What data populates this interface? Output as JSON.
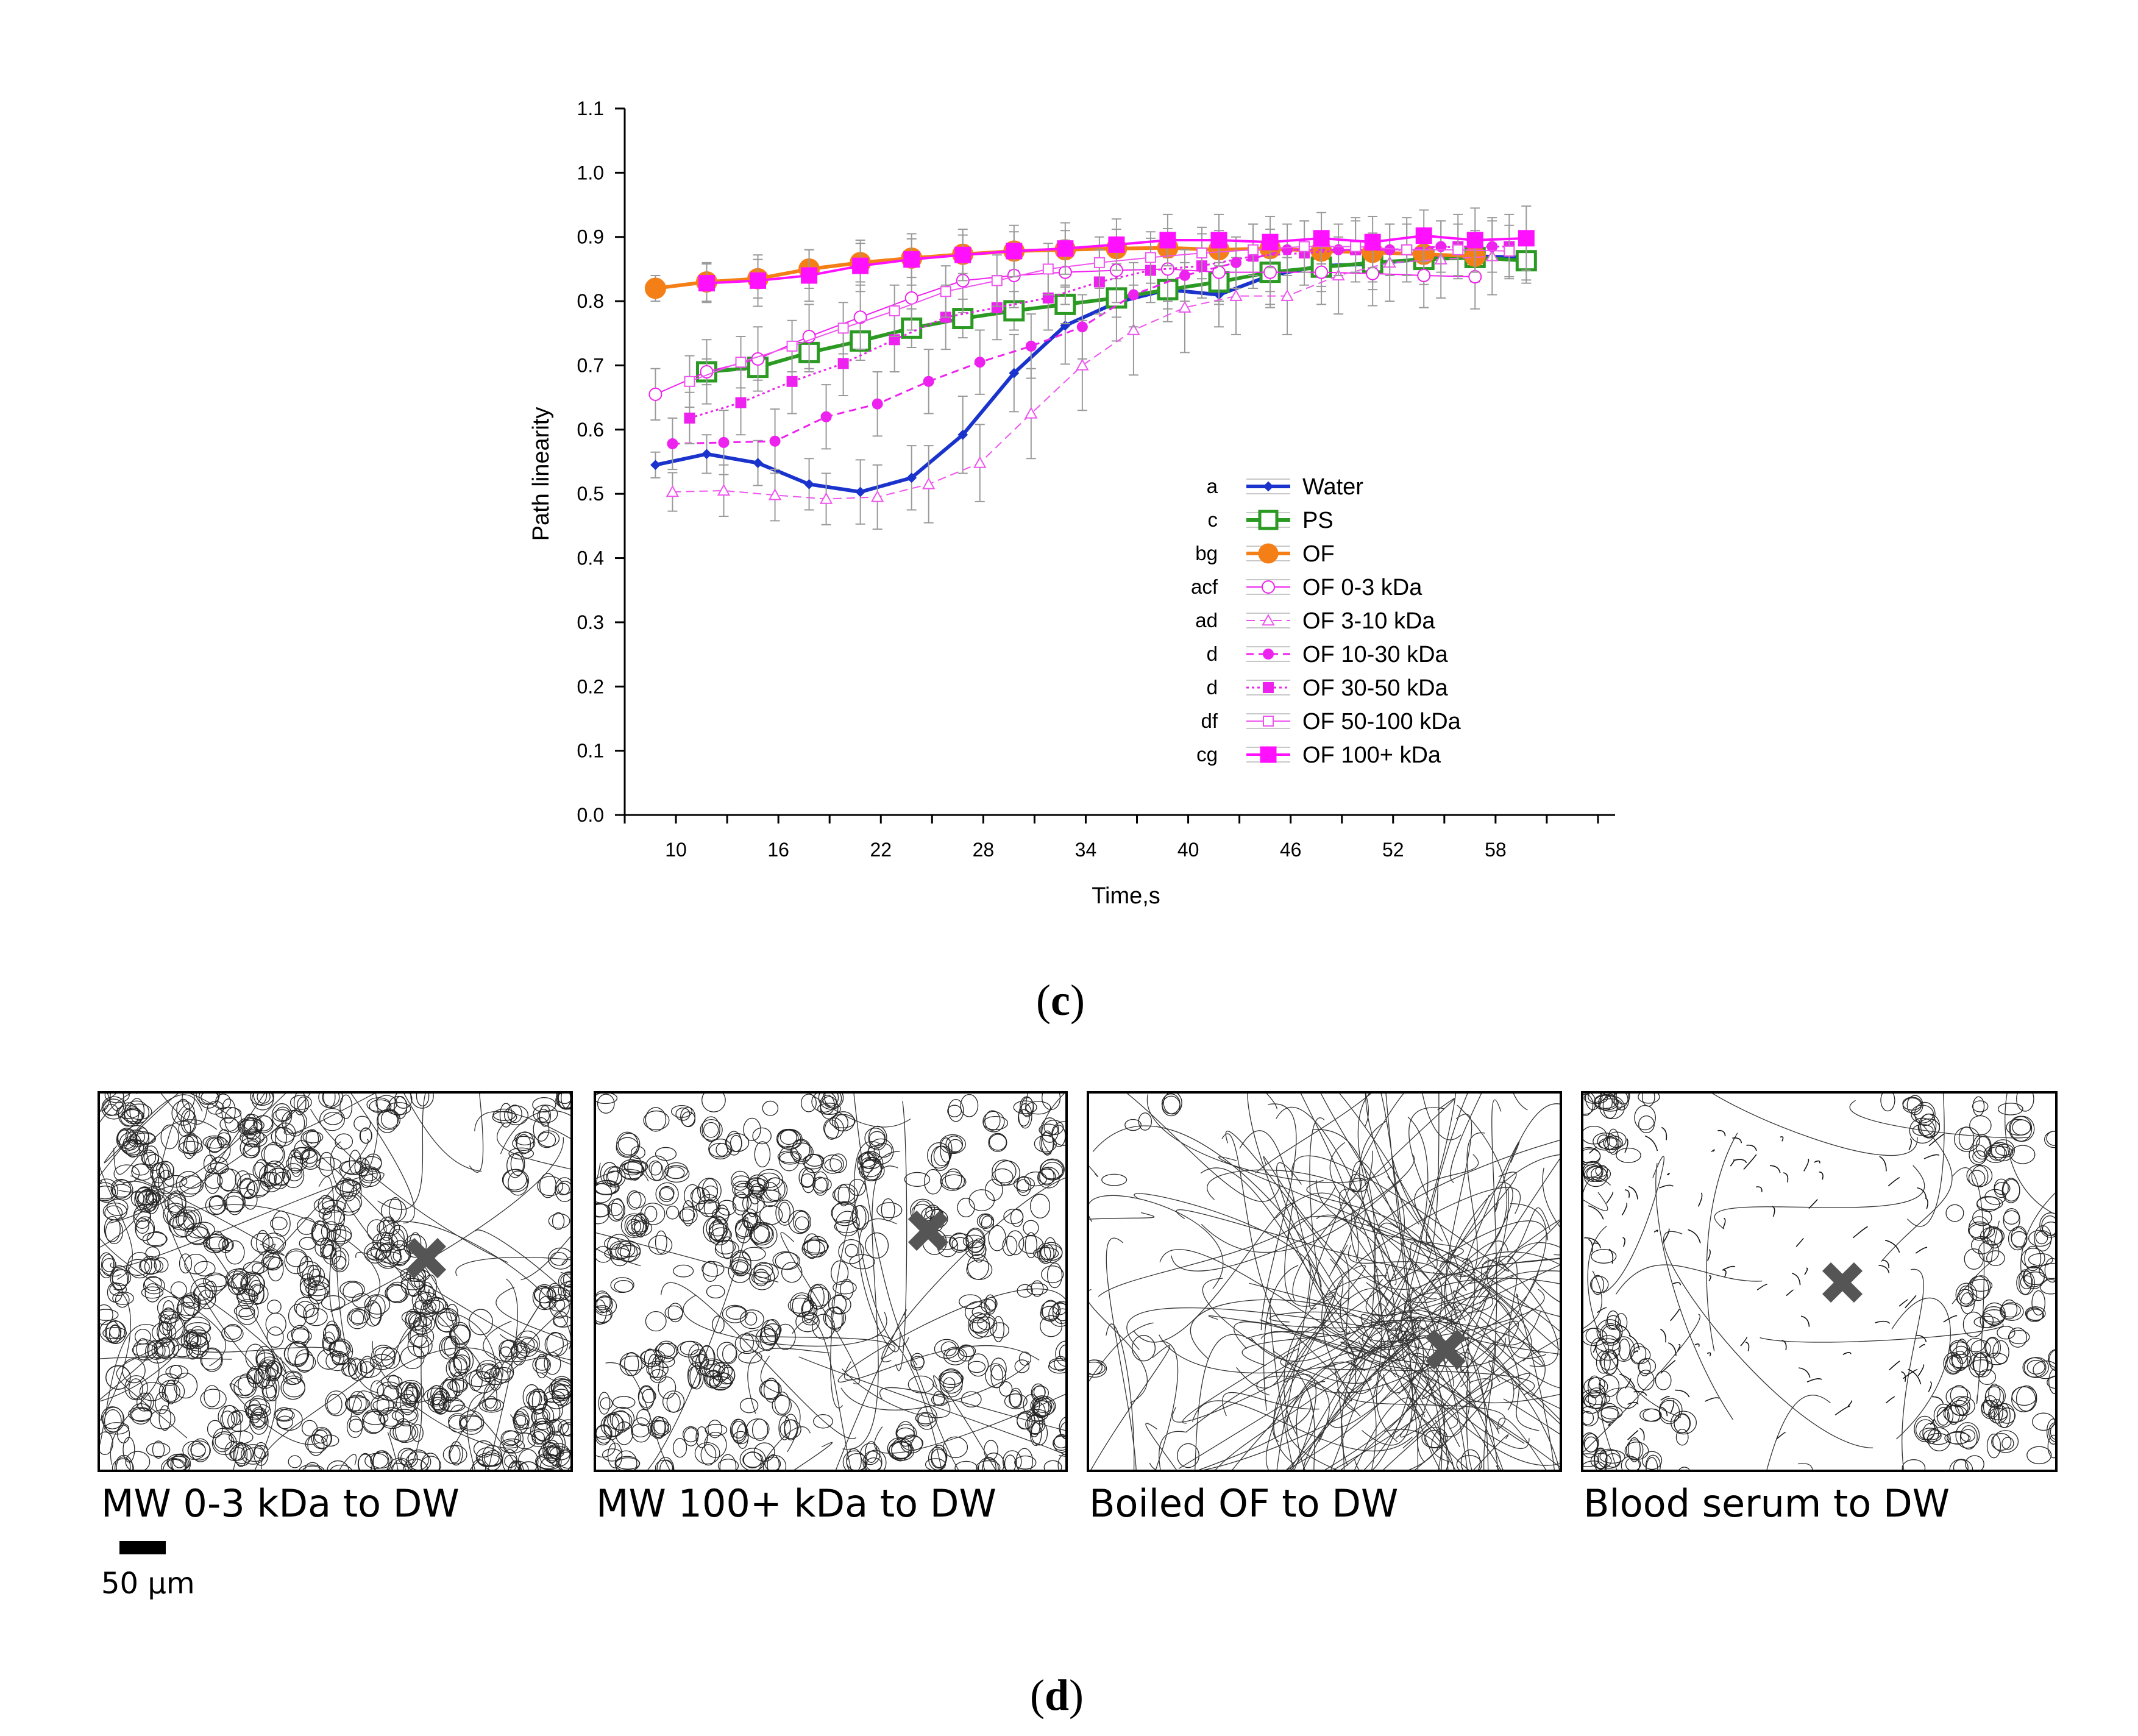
{
  "chart_data": {
    "type": "line",
    "xlabel": "Time,s",
    "ylabel": "Path linearity",
    "xlim": [
      7,
      65
    ],
    "ylim": [
      0,
      1.1
    ],
    "x_ticks": [
      "10",
      "16",
      "22",
      "28",
      "34",
      "40",
      "46",
      "52",
      "58"
    ],
    "y_ticks": [
      "0.0",
      "0.1",
      "0.2",
      "0.3",
      "0.4",
      "0.5",
      "0.6",
      "0.7",
      "0.8",
      "0.9",
      "1.0",
      "1.1"
    ],
    "legend_position": "center-right",
    "series": [
      {
        "name": "Water",
        "letter": "a",
        "color": "#1a33cc",
        "dash": "solid",
        "marker": "diamond",
        "fill": true,
        "size": 7,
        "width": 6,
        "x": [
          8.8,
          11.8,
          14.8,
          17.8,
          20.8,
          23.8,
          26.8,
          29.8,
          32.8,
          35.8,
          38.8,
          41.8,
          44.8,
          47.8,
          50.8,
          53.8,
          56.8,
          59.8
        ],
        "y": [
          0.545,
          0.562,
          0.548,
          0.515,
          0.503,
          0.525,
          0.592,
          0.688,
          0.762,
          0.798,
          0.818,
          0.81,
          0.84,
          0.855,
          0.858,
          0.866,
          0.87,
          0.868
        ],
        "err": [
          0.02,
          0.03,
          0.035,
          0.04,
          0.05,
          0.05,
          0.06,
          0.06,
          0.06,
          0.06,
          0.05,
          0.05,
          0.05,
          0.04,
          0.04,
          0.04,
          0.04,
          0.04
        ]
      },
      {
        "name": "PS",
        "letter": "c",
        "color": "#2a9a22",
        "dash": "solid",
        "marker": "square",
        "fill": false,
        "size": 15,
        "width": 6,
        "x": [
          11.8,
          14.8,
          17.8,
          20.8,
          23.8,
          26.8,
          29.8,
          32.8,
          35.8,
          38.8,
          41.8,
          44.8,
          47.8,
          50.8,
          53.8,
          56.8,
          59.8
        ],
        "y": [
          0.69,
          0.697,
          0.72,
          0.738,
          0.758,
          0.773,
          0.785,
          0.795,
          0.805,
          0.818,
          0.83,
          0.845,
          0.853,
          0.86,
          0.865,
          0.868,
          0.863
        ],
        "err": [
          0.02,
          0.02,
          0.03,
          0.03,
          0.03,
          0.03,
          0.03,
          0.03,
          0.03,
          0.03,
          0.03,
          0.03,
          0.03,
          0.03,
          0.03,
          0.03,
          0.03
        ]
      },
      {
        "name": "OF",
        "letter": "bg",
        "color": "#f57f17",
        "dash": "solid",
        "marker": "circle",
        "fill": true,
        "size": 15,
        "width": 6,
        "x": [
          8.8,
          11.8,
          14.8,
          17.8,
          20.8,
          23.8,
          26.8,
          29.8,
          32.8,
          35.8,
          38.8,
          41.8,
          44.8,
          47.8,
          50.8,
          53.8,
          56.8
        ],
        "y": [
          0.82,
          0.83,
          0.835,
          0.85,
          0.86,
          0.867,
          0.873,
          0.878,
          0.88,
          0.882,
          0.883,
          0.88,
          0.882,
          0.878,
          0.876,
          0.873,
          0.87
        ],
        "err": [
          0.02,
          0.03,
          0.03,
          0.03,
          0.03,
          0.03,
          0.03,
          0.03,
          0.03,
          0.03,
          0.03,
          0.03,
          0.03,
          0.03,
          0.03,
          0.03,
          0.03
        ]
      },
      {
        "name": "OF 0-3 kDa",
        "letter": "acf",
        "color": "#ee22ee",
        "dash": "solid",
        "marker": "circle",
        "fill": false,
        "size": 10,
        "width": 2,
        "x": [
          8.8,
          11.8,
          14.8,
          17.8,
          20.8,
          23.8,
          26.8,
          29.8,
          32.8,
          35.8,
          38.8,
          41.8,
          44.8,
          47.8,
          50.8,
          53.8,
          56.8
        ],
        "y": [
          0.655,
          0.69,
          0.71,
          0.745,
          0.775,
          0.805,
          0.832,
          0.84,
          0.845,
          0.848,
          0.85,
          0.845,
          0.845,
          0.845,
          0.843,
          0.84,
          0.838
        ],
        "err": [
          0.04,
          0.05,
          0.05,
          0.05,
          0.05,
          0.05,
          0.05,
          0.05,
          0.05,
          0.05,
          0.05,
          0.05,
          0.05,
          0.05,
          0.05,
          0.05,
          0.05
        ]
      },
      {
        "name": "OF 3-10 kDa",
        "letter": "ad",
        "color": "#ee55ee",
        "dash": "14,8",
        "marker": "triangle",
        "fill": false,
        "size": 9,
        "width": 2,
        "x": [
          9.8,
          12.8,
          15.8,
          18.8,
          21.8,
          24.8,
          27.8,
          30.8,
          33.8,
          36.8,
          39.8,
          42.8,
          45.8,
          48.8,
          51.8,
          54.8,
          57.8
        ],
        "y": [
          0.503,
          0.505,
          0.498,
          0.492,
          0.495,
          0.515,
          0.548,
          0.625,
          0.7,
          0.755,
          0.79,
          0.808,
          0.808,
          0.84,
          0.86,
          0.865,
          0.87
        ],
        "err": [
          0.03,
          0.04,
          0.04,
          0.04,
          0.05,
          0.06,
          0.06,
          0.07,
          0.07,
          0.07,
          0.07,
          0.06,
          0.06,
          0.06,
          0.06,
          0.06,
          0.06
        ]
      },
      {
        "name": "OF 10-30 kDa",
        "letter": "d",
        "color": "#ee22ee",
        "dash": "12,8",
        "marker": "circle",
        "fill": true,
        "size": 8,
        "width": 3,
        "x": [
          9.8,
          12.8,
          15.8,
          18.8,
          21.8,
          24.8,
          27.8,
          30.8,
          33.8,
          36.8,
          39.8,
          42.8,
          45.8,
          48.8,
          51.8,
          54.8,
          57.8
        ],
        "y": [
          0.578,
          0.58,
          0.582,
          0.62,
          0.64,
          0.675,
          0.705,
          0.73,
          0.76,
          0.81,
          0.84,
          0.86,
          0.88,
          0.88,
          0.88,
          0.885,
          0.885
        ],
        "err": [
          0.04,
          0.05,
          0.05,
          0.05,
          0.05,
          0.05,
          0.05,
          0.05,
          0.05,
          0.05,
          0.04,
          0.04,
          0.04,
          0.04,
          0.04,
          0.04,
          0.04
        ]
      },
      {
        "name": "OF 30-50 kDa",
        "letter": "d",
        "color": "#ee22ee",
        "dash": "4,5",
        "marker": "square",
        "fill": true,
        "size": 8,
        "width": 3,
        "x": [
          10.8,
          13.8,
          16.8,
          19.8,
          22.8,
          25.8,
          28.8,
          31.8,
          34.8,
          37.8,
          40.8,
          43.8,
          46.8,
          49.8,
          52.8,
          55.8,
          58.8
        ],
        "y": [
          0.618,
          0.642,
          0.675,
          0.703,
          0.74,
          0.775,
          0.79,
          0.805,
          0.83,
          0.848,
          0.855,
          0.87,
          0.875,
          0.88,
          0.88,
          0.885,
          0.885
        ],
        "err": [
          0.04,
          0.05,
          0.05,
          0.05,
          0.05,
          0.05,
          0.05,
          0.05,
          0.05,
          0.05,
          0.05,
          0.05,
          0.05,
          0.05,
          0.05,
          0.05,
          0.05
        ]
      },
      {
        "name": "OF 50-100 kDa",
        "letter": "df",
        "color": "#ee55ee",
        "dash": "solid",
        "marker": "square",
        "fill": false,
        "size": 8,
        "width": 2,
        "x": [
          10.8,
          13.8,
          16.8,
          19.8,
          22.8,
          25.8,
          28.8,
          31.8,
          34.8,
          37.8,
          40.8,
          43.8,
          46.8,
          49.8,
          52.8,
          55.8,
          58.8
        ],
        "y": [
          0.675,
          0.705,
          0.73,
          0.758,
          0.785,
          0.815,
          0.832,
          0.85,
          0.86,
          0.868,
          0.875,
          0.88,
          0.885,
          0.885,
          0.88,
          0.88,
          0.878
        ],
        "err": [
          0.04,
          0.04,
          0.04,
          0.04,
          0.04,
          0.04,
          0.04,
          0.04,
          0.04,
          0.04,
          0.04,
          0.04,
          0.04,
          0.04,
          0.04,
          0.04,
          0.04
        ]
      },
      {
        "name": "OF 100+ kDa",
        "letter": "cg",
        "color": "#ff11ff",
        "dash": "solid",
        "marker": "square",
        "fill": true,
        "size": 12,
        "width": 4,
        "x": [
          11.8,
          14.8,
          17.8,
          20.8,
          23.8,
          26.8,
          29.8,
          32.8,
          35.8,
          38.8,
          41.8,
          44.8,
          47.8,
          50.8,
          53.8,
          56.8,
          59.8
        ],
        "y": [
          0.828,
          0.832,
          0.84,
          0.855,
          0.865,
          0.872,
          0.878,
          0.882,
          0.888,
          0.895,
          0.895,
          0.892,
          0.898,
          0.892,
          0.902,
          0.895,
          0.898
        ],
        "err": [
          0.03,
          0.04,
          0.04,
          0.04,
          0.04,
          0.04,
          0.04,
          0.04,
          0.04,
          0.04,
          0.04,
          0.04,
          0.04,
          0.04,
          0.04,
          0.05,
          0.05
        ]
      }
    ]
  },
  "panel_c_label": "c",
  "panel_d_label": "d",
  "tracks": {
    "panels": [
      {
        "caption": "MW 0-3 kDa to DW"
      },
      {
        "caption": "MW 100+ kDa to DW"
      },
      {
        "caption": "Boiled OF to DW"
      },
      {
        "caption": "Blood serum to DW"
      }
    ],
    "scale_label": "50 µm"
  }
}
